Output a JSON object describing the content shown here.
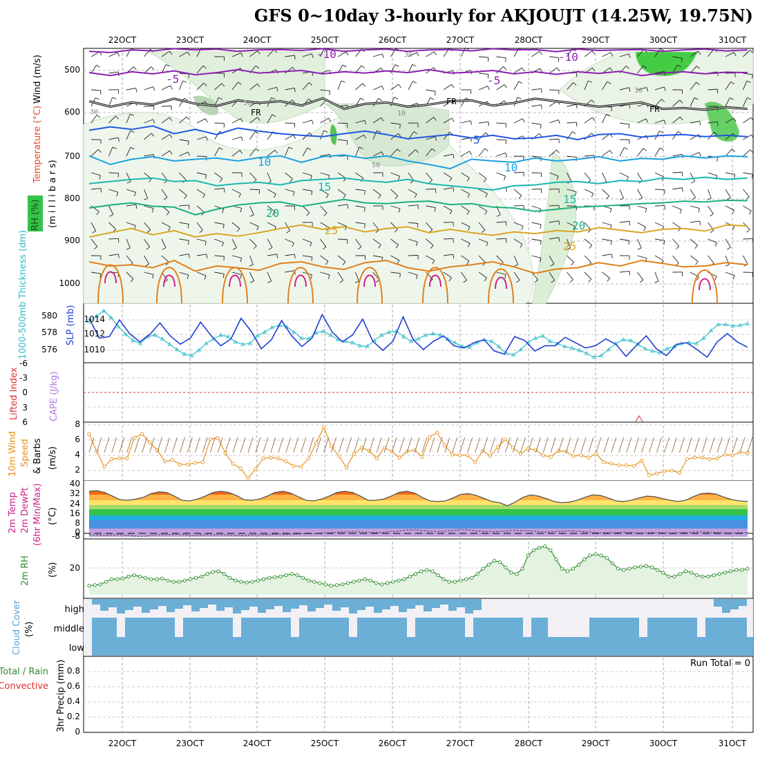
{
  "title": "GFS 0~10day 3-hourly for AKJOUJT (14.25W, 19.75N)",
  "colors": {
    "rh_green": "#33c24a",
    "wind_purple": "#8b1fb0",
    "temp_blue": "#1f57e0",
    "temp_lightblue": "#1aa0e0",
    "temp_teal": "#1ab6b0",
    "temp_green": "#19b07a",
    "temp_gold": "#d9a521",
    "temp_orange": "#e07f1a",
    "temp_magenta": "#d0208a",
    "thickness": "#2ebcc8",
    "slp": "#1f3fd0",
    "wind10m": "#e8911c",
    "rh2m": "#2e8b2e",
    "cloud": "#6baed6"
  },
  "chart_data": [
    {
      "id": "upper",
      "type": "contour",
      "ylabel": "(m i l l i b a r s)",
      "legend_labels": [
        "Wind (m/s)",
        "Temperature (°C)",
        "RH (%)"
      ],
      "y_ticks": [
        "500",
        "600",
        "700",
        "800",
        "900",
        "1000"
      ],
      "x_ticks_top": [
        "22OCT",
        "23OCT",
        "24OCT",
        "25OCT",
        "26OCT",
        "27OCT",
        "28OCT",
        "29OCT",
        "30OCT",
        "31OCT"
      ],
      "contour_labels": [
        "-10",
        "-10",
        "-5",
        "-5",
        "FR",
        "FR",
        "FR",
        "5",
        "10",
        "10",
        "15",
        "15",
        "20",
        "20",
        "25",
        "25",
        "30",
        "30",
        "30",
        "50",
        "50",
        "10"
      ],
      "isotherms": [
        {
          "label": "-10",
          "pressure": [
            455,
            458,
            452,
            454,
            449,
            452,
            450,
            455,
            452,
            451,
            453,
            449,
            455,
            452,
            450,
            455,
            452,
            451,
            454,
            449,
            452,
            451,
            456,
            450,
            453,
            452,
            451,
            455,
            452,
            450,
            454,
            452
          ]
        },
        {
          "label": "-5",
          "pressure": [
            505,
            512,
            503,
            508,
            501,
            510,
            505,
            498,
            506,
            503,
            500,
            508,
            503,
            506,
            501,
            505,
            498,
            506,
            504,
            500,
            508,
            503,
            509,
            503,
            507,
            502,
            512,
            506,
            503,
            508,
            504,
            505
          ]
        },
        {
          "label": "FR",
          "pressure": [
            572,
            585,
            575,
            580,
            566,
            578,
            583,
            570,
            576,
            572,
            582,
            565,
            590,
            578,
            575,
            585,
            580,
            572,
            570,
            582,
            576,
            566,
            572,
            578,
            585,
            580,
            575,
            590,
            588,
            592,
            586,
            590
          ]
        },
        {
          "label": "5",
          "pressure": [
            640,
            632,
            638,
            630,
            648,
            638,
            650,
            635,
            642,
            648,
            652,
            655,
            648,
            642,
            650,
            660,
            655,
            650,
            658,
            652,
            660,
            658,
            652,
            662,
            650,
            648,
            656,
            652,
            650,
            655,
            652,
            655
          ]
        },
        {
          "label": "10",
          "pressure": [
            700,
            720,
            708,
            702,
            712,
            708,
            705,
            712,
            704,
            700,
            715,
            702,
            698,
            706,
            700,
            712,
            720,
            730,
            708,
            712,
            715,
            705,
            712,
            708,
            702,
            712,
            706,
            708,
            700,
            705,
            700,
            702
          ]
        },
        {
          "label": "15",
          "pressure": [
            765,
            760,
            755,
            752,
            760,
            758,
            770,
            765,
            762,
            768,
            758,
            755,
            752,
            758,
            762,
            755,
            765,
            770,
            775,
            780,
            770,
            768,
            762,
            760,
            765,
            758,
            760,
            752,
            755,
            750,
            755,
            752
          ]
        },
        {
          "label": "20",
          "pressure": [
            822,
            815,
            810,
            818,
            820,
            838,
            825,
            815,
            810,
            808,
            818,
            810,
            802,
            810,
            812,
            808,
            806,
            814,
            812,
            820,
            822,
            830,
            825,
            820,
            818,
            815,
            812,
            810,
            806,
            808,
            804,
            805
          ]
        },
        {
          "label": "25",
          "pressure": [
            890,
            880,
            870,
            885,
            875,
            890,
            882,
            888,
            880,
            870,
            862,
            872,
            866,
            878,
            870,
            866,
            880,
            872,
            880,
            886,
            878,
            882,
            875,
            878,
            868,
            874,
            880,
            872,
            870,
            876,
            862,
            864
          ]
        },
        {
          "label": "30",
          "pressure": [
            948,
            958,
            955,
            962,
            945,
            970,
            958,
            962,
            968,
            952,
            948,
            960,
            966,
            950,
            945,
            962,
            970,
            960,
            955,
            948,
            960,
            975,
            965,
            962,
            950,
            958,
            945,
            952,
            960,
            958,
            950,
            955
          ]
        }
      ]
    },
    {
      "id": "thickness_slp",
      "type": "line",
      "ylabel_left": "1000-500mb Thickness (dm)",
      "ylabel_right": "SLP (mb)",
      "y_ticks_left": [
        "580",
        "578",
        "576"
      ],
      "y_ticks_right": [
        "1014",
        "1012",
        "1010"
      ],
      "series": [
        {
          "name": "Thickness",
          "values": [
            1013.8,
            1014.5,
            1015.2,
            1014.3,
            1013.1,
            1012.1,
            1011.3,
            1010.9,
            1011.8,
            1012.0,
            1011.5,
            1010.8,
            1010.1,
            1009.5,
            1009.3,
            1010.0,
            1010.9,
            1011.5,
            1012.0,
            1011.8,
            1011.1,
            1010.8,
            1010.9,
            1011.9,
            1012.4,
            1013.0,
            1013.3,
            1013.1,
            1012.4,
            1011.6,
            1011.5,
            1012.3,
            1012.5,
            1012.0,
            1011.4,
            1011.2,
            1011.0,
            1010.6,
            1010.5,
            1011.3,
            1012.0,
            1012.4,
            1012.5,
            1011.8,
            1011.2,
            1011.5,
            1012.0,
            1012.2,
            1012.0,
            1011.5,
            1011.0,
            1010.5,
            1010.4,
            1011.0,
            1011.4,
            1011.2,
            1010.5,
            1009.6,
            1009.4,
            1010.1,
            1011.0,
            1011.6,
            1011.9,
            1011.2,
            1010.9,
            1010.5,
            1010.3,
            1010.0,
            1009.6,
            1009.1,
            1009.3,
            1010.1,
            1010.9,
            1011.4,
            1011.3,
            1010.8,
            1010.2,
            1009.9,
            1009.7,
            1010.2,
            1010.5,
            1010.9,
            1011.0,
            1010.9,
            1011.6,
            1012.6,
            1013.4,
            1013.4,
            1013.2,
            1013.3,
            1013.5
          ]
        },
        {
          "name": "SLP",
          "values": [
            1014.2,
            1011.6,
            1011.8,
            1014.0,
            1012.2,
            1011.1,
            1012.1,
            1013.6,
            1011.9,
            1010.8,
            1011.6,
            1013.7,
            1012.0,
            1010.6,
            1011.5,
            1014.2,
            1012.5,
            1010.2,
            1011.4,
            1013.9,
            1011.9,
            1010.5,
            1011.6,
            1014.7,
            1012.4,
            1011.1,
            1012.0,
            1014.1,
            1011.2,
            1010.0,
            1011.2,
            1014.4,
            1011.4,
            1010.1,
            1011.2,
            1011.9,
            1010.6,
            1010.3,
            1011.0,
            1011.4,
            1009.9,
            1009.5,
            1011.8,
            1011.3,
            1009.9,
            1010.6,
            1010.6,
            1011.7,
            1011.0,
            1010.3,
            1010.6,
            1011.5,
            1010.8,
            1009.2,
            1010.6,
            1011.9,
            1010.2,
            1009.3,
            1010.8,
            1011.0,
            1010.1,
            1009.1,
            1011.1,
            1012.2,
            1011.1,
            1010.4
          ]
        }
      ]
    },
    {
      "id": "cape_li",
      "type": "line",
      "ylabel_left": "Lifted Index",
      "ylabel_right": "CAPE (J/kg)",
      "y_ticks": [
        "-6",
        "-3",
        "0",
        "3",
        "6"
      ]
    },
    {
      "id": "wind10m",
      "type": "line",
      "ylabel": [
        "10m Wind",
        "Speed",
        "& Barbs",
        "(m/s)"
      ],
      "y_ticks": [
        "8",
        "6",
        "4",
        "2"
      ],
      "series": [
        {
          "name": "10m Wind Speed",
          "values": [
            6.8,
            4.5,
            2.5,
            3.5,
            3.6,
            3.6,
            6.3,
            6.8,
            5.7,
            4.7,
            3.2,
            3.4,
            2.8,
            2.8,
            3.0,
            3.1,
            6.1,
            6.3,
            4.3,
            2.9,
            2.3,
            1.0,
            2.2,
            3.6,
            3.7,
            3.6,
            3.2,
            2.6,
            2.5,
            3.6,
            5.6,
            7.7,
            5.2,
            3.9,
            2.4,
            4.2,
            5.0,
            4.6,
            3.6,
            5.0,
            4.5,
            3.7,
            4.5,
            4.7,
            3.8,
            6.4,
            7.0,
            5.3,
            4.1,
            4.0,
            4.0,
            3.1,
            4.6,
            3.9,
            5.1,
            6.1,
            5.0,
            4.2,
            4.9,
            4.7,
            4.0,
            3.8,
            4.6,
            4.5,
            3.9,
            4.0,
            3.7,
            4.2,
            3.1,
            2.9,
            2.7,
            2.7,
            2.6,
            3.3,
            1.4,
            1.6,
            1.9,
            2.0,
            1.7,
            3.5,
            3.7,
            3.7,
            3.5,
            3.6,
            4.1,
            4.0,
            4.4,
            4.3
          ]
        }
      ]
    },
    {
      "id": "temp2m",
      "type": "area",
      "ylabel": [
        "2m Temp",
        "2m DewPt",
        "(6hr Min/Max)",
        "(°C)"
      ],
      "y_ticks": [
        "40",
        "32",
        "24",
        "16",
        "8",
        "0",
        "-8"
      ],
      "series": [
        {
          "name": "2m Temp",
          "values": [
            36.0,
            36.5,
            35.0,
            32.0,
            29.0,
            28.5,
            29.5,
            31.0,
            34.0,
            35.5,
            35.0,
            32.0,
            28.5,
            28.0,
            29.5,
            32.0,
            35.0,
            36.0,
            35.0,
            32.5,
            29.0,
            28.5,
            29.5,
            32.0,
            35.0,
            36.0,
            34.5,
            31.5,
            28.5,
            28.0,
            29.5,
            32.0,
            35.0,
            36.0,
            35.0,
            32.0,
            28.5,
            28.5,
            29.5,
            32.0,
            35.0,
            36.0,
            34.5,
            31.0,
            28.0,
            27.5,
            28.0,
            30.5,
            33.5,
            34.0,
            32.5,
            30.0,
            27.5,
            26.5,
            24.0,
            27.0,
            31.0,
            33.0,
            32.0,
            30.0,
            27.5,
            26.5,
            27.0,
            28.5,
            31.0,
            33.0,
            32.5,
            30.5,
            28.0,
            27.5,
            28.5,
            30.5,
            32.0,
            31.5,
            30.0,
            28.5,
            27.5,
            28.5,
            31.5,
            34.0,
            34.5,
            33.5,
            31.0,
            29.0,
            28.0,
            27.5
          ]
        },
        {
          "name": "2m DewPt",
          "values": [
            -5.0,
            -5.5,
            -6.0,
            -5.5,
            -5.0,
            -6.0,
            -7.5,
            -8.0,
            -6.0,
            -5.0,
            -5.0,
            -4.5,
            -5.0,
            -6.0,
            -6.0,
            -5.0,
            -5.5,
            -5.0,
            -5.5,
            -6.0,
            -6.5,
            -5.5,
            -5.0,
            -5.0,
            -4.0,
            -4.5,
            -4.0,
            -3.5,
            -3.0,
            -3.0,
            -2.0,
            -1.5,
            -0.5,
            0.0,
            0.5,
            0.0,
            -0.5,
            -1.0,
            -0.5,
            1.0,
            2.0,
            3.5,
            4.0,
            2.5,
            1.5,
            1.0,
            1.5,
            3.0,
            4.0,
            3.5,
            2.0,
            1.0,
            0.5,
            1.0,
            2.0,
            3.0,
            2.5,
            2.0,
            1.0,
            0.0,
            0.5,
            1.5,
            2.0,
            1.5,
            0.5,
            -1.0,
            -1.5,
            -1.5,
            -1.0,
            -0.5,
            -1.0,
            -2.0,
            -1.5,
            -1.0,
            -1.5,
            -2.0,
            -1.5,
            -1.0,
            -0.5,
            0.0,
            -0.5,
            -1.0,
            -1.5,
            -2.0,
            -1.5,
            -1.0
          ]
        }
      ]
    },
    {
      "id": "rh2m",
      "type": "area",
      "ylabel": [
        "2m RH",
        "(%)"
      ],
      "y_ticks": [
        "20"
      ],
      "series": [
        {
          "name": "2m RH",
          "values": [
            7,
            7.5,
            8,
            10,
            12,
            12,
            12.5,
            14,
            15,
            14,
            13,
            12,
            12,
            12.5,
            11,
            10,
            10,
            11,
            12,
            13,
            14,
            16,
            17.5,
            18,
            16,
            13,
            11,
            10,
            9.5,
            10,
            11,
            12,
            13,
            13.5,
            14,
            15,
            16,
            15,
            13,
            11,
            10,
            9,
            8,
            7,
            7.5,
            8,
            9,
            10,
            11,
            12,
            11,
            9,
            8,
            9,
            10,
            11,
            12,
            14,
            16,
            18,
            19,
            18,
            15,
            12,
            10,
            10,
            11,
            12,
            13,
            16,
            20,
            23,
            26,
            25,
            21,
            17,
            16,
            20,
            30,
            34,
            36,
            37,
            34,
            27,
            20,
            18,
            20,
            23,
            27,
            30,
            31,
            30,
            28,
            24,
            20,
            19,
            20,
            21,
            21.5,
            22,
            21,
            19,
            17,
            14,
            14,
            16,
            18,
            17,
            15,
            14,
            14,
            15,
            16,
            17,
            18,
            19,
            19,
            20
          ]
        }
      ]
    },
    {
      "id": "cloud",
      "type": "bar",
      "ylabel": [
        "Cloud Cover",
        "(%)"
      ],
      "categories": [
        "high",
        "middle",
        "low"
      ]
    },
    {
      "id": "precip",
      "type": "bar",
      "ylabel": [
        "3hr Precip (mm)",
        "Total / Rain",
        "Convective"
      ],
      "y_ticks": [
        "0.8",
        "0.6",
        "0.4",
        "0.2",
        "0"
      ],
      "annotation": "Run Total = 0",
      "x_ticks": [
        "22OCT",
        "23OCT",
        "24OCT",
        "25OCT",
        "26OCT",
        "27OCT",
        "28OCT",
        "29OCT",
        "30OCT",
        "31OCT"
      ]
    }
  ]
}
